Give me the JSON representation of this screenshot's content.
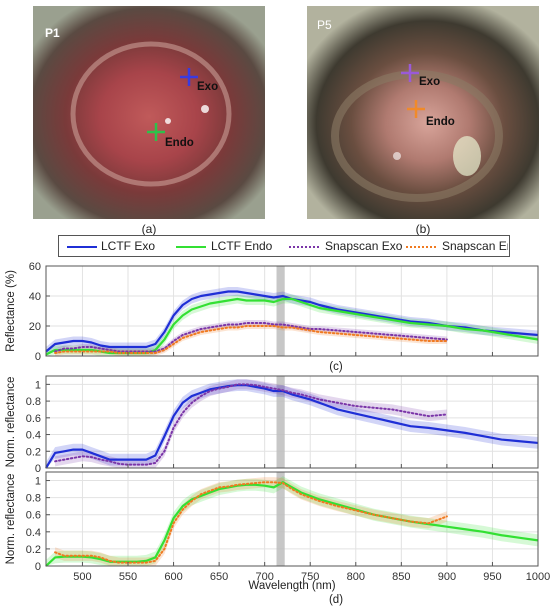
{
  "photos": [
    {
      "id": "P1",
      "panel": "(a)",
      "markers": [
        {
          "label": "Exo",
          "color": "#3a3adf"
        },
        {
          "label": "Endo",
          "color": "#2ec04a"
        }
      ]
    },
    {
      "id": "P5",
      "panel": "(b)",
      "markers": [
        {
          "label": "Exo",
          "color": "#9a5ad8"
        },
        {
          "label": "Endo",
          "color": "#f08a2a"
        }
      ]
    }
  ],
  "legend": [
    {
      "label": "LCTF Exo",
      "color": "#1f2fd6",
      "style": "solid"
    },
    {
      "label": "LCTF Endo",
      "color": "#33e033",
      "style": "solid"
    },
    {
      "label": "Snapscan Exo",
      "color": "#7a35a8",
      "style": "dotted"
    },
    {
      "label": "Snapscan Endo",
      "color": "#f07a20",
      "style": "dotted"
    }
  ],
  "chart_captions": {
    "c": "(c)",
    "d": "(d)"
  },
  "chart_data": [
    {
      "type": "line",
      "ylabel": "Reflectance (%)",
      "xlabel": "",
      "xlim": [
        460,
        1000
      ],
      "ylim": [
        0,
        60
      ],
      "yticks": [
        0,
        20,
        40,
        60
      ],
      "xticks": [
        500,
        550,
        600,
        650,
        700,
        750,
        800,
        850,
        900,
        950,
        1000
      ],
      "grid": true,
      "highlight_band": [
        713,
        722
      ],
      "series": [
        {
          "name": "LCTF Exo",
          "color": "#1f2fd6",
          "style": "solid",
          "band": 3,
          "x": [
            460,
            470,
            480,
            490,
            500,
            510,
            520,
            530,
            540,
            550,
            560,
            570,
            580,
            590,
            600,
            610,
            620,
            630,
            640,
            650,
            660,
            670,
            680,
            690,
            700,
            710,
            720,
            730,
            740,
            750,
            760,
            780,
            800,
            820,
            840,
            860,
            880,
            900,
            920,
            940,
            960,
            980,
            1000
          ],
          "y": [
            3,
            8,
            9,
            10,
            10,
            9,
            7,
            6,
            6,
            6,
            6,
            6,
            8,
            16,
            27,
            34,
            38,
            40,
            41,
            42,
            43,
            43,
            42,
            41,
            40,
            39,
            40,
            38,
            37,
            36,
            34,
            31,
            29,
            27,
            25,
            23,
            22,
            20,
            19,
            17,
            16,
            15,
            14
          ]
        },
        {
          "name": "LCTF Endo",
          "color": "#33e033",
          "style": "solid",
          "band": 3,
          "x": [
            460,
            470,
            480,
            490,
            500,
            510,
            520,
            530,
            540,
            550,
            560,
            570,
            580,
            590,
            600,
            610,
            620,
            630,
            640,
            650,
            660,
            670,
            680,
            690,
            700,
            710,
            720,
            730,
            740,
            750,
            760,
            780,
            800,
            820,
            840,
            860,
            880,
            900,
            920,
            940,
            960,
            980,
            1000
          ],
          "y": [
            1,
            4,
            4,
            4,
            4,
            4,
            3,
            2,
            2,
            2,
            2,
            2,
            4,
            11,
            21,
            27,
            31,
            33,
            35,
            36,
            37,
            38,
            37,
            37,
            37,
            36,
            38,
            38,
            36,
            34,
            32,
            30,
            28,
            26,
            24,
            22,
            21,
            20,
            18,
            17,
            15,
            13,
            11
          ]
        },
        {
          "name": "Snapscan Exo",
          "color": "#7a35a8",
          "style": "dotted",
          "band": 2,
          "x": [
            470,
            480,
            490,
            500,
            510,
            520,
            530,
            540,
            550,
            560,
            570,
            580,
            590,
            600,
            610,
            620,
            630,
            640,
            650,
            660,
            670,
            680,
            690,
            700,
            710,
            720,
            730,
            740,
            750,
            760,
            780,
            800,
            820,
            840,
            860,
            880,
            900
          ],
          "y": [
            3,
            5,
            5,
            6,
            6,
            5,
            4,
            3,
            3,
            3,
            3,
            3,
            5,
            10,
            14,
            16,
            18,
            19,
            20,
            21,
            21,
            22,
            22,
            22,
            21,
            21,
            20,
            19,
            18,
            18,
            17,
            16,
            15,
            14,
            13,
            12,
            11
          ]
        },
        {
          "name": "Snapscan Endo",
          "color": "#f07a20",
          "style": "dotted",
          "band": 2,
          "x": [
            470,
            480,
            490,
            500,
            510,
            520,
            530,
            540,
            550,
            560,
            570,
            580,
            590,
            600,
            610,
            620,
            630,
            640,
            650,
            660,
            670,
            680,
            690,
            700,
            710,
            720,
            730,
            740,
            750,
            760,
            780,
            800,
            820,
            840,
            860,
            880,
            900
          ],
          "y": [
            2,
            3,
            3,
            3,
            3,
            3,
            3,
            2,
            2,
            2,
            2,
            2,
            4,
            8,
            12,
            14,
            16,
            17,
            18,
            19,
            19,
            20,
            20,
            20,
            20,
            19,
            19,
            18,
            17,
            16,
            15,
            14,
            13,
            12,
            11,
            10,
            10
          ]
        }
      ]
    },
    {
      "type": "line",
      "ylabel": "Norm. reflectance",
      "xlabel": "",
      "xlim": [
        460,
        1000
      ],
      "ylim": [
        0,
        1.1
      ],
      "yticks": [
        0,
        0.2,
        0.4,
        0.6,
        0.8,
        1
      ],
      "ytick_labels": [
        "0",
        "0.2",
        "0.4",
        "0.6",
        "0.8",
        "1"
      ],
      "xticks": [
        500,
        550,
        600,
        650,
        700,
        750,
        800,
        850,
        900,
        950,
        1000
      ],
      "grid": true,
      "highlight_band": [
        713,
        722
      ],
      "series": [
        {
          "name": "LCTF Exo",
          "color": "#1f2fd6",
          "style": "solid",
          "band": 0.07,
          "x": [
            460,
            470,
            480,
            490,
            500,
            510,
            520,
            530,
            540,
            550,
            560,
            570,
            580,
            590,
            600,
            610,
            620,
            630,
            640,
            650,
            660,
            670,
            680,
            690,
            700,
            710,
            720,
            730,
            740,
            750,
            760,
            780,
            800,
            820,
            840,
            860,
            880,
            900,
            920,
            940,
            960,
            980,
            1000
          ],
          "y": [
            0,
            0.18,
            0.2,
            0.22,
            0.22,
            0.18,
            0.14,
            0.1,
            0.1,
            0.1,
            0.1,
            0.1,
            0.15,
            0.38,
            0.62,
            0.78,
            0.86,
            0.9,
            0.94,
            0.96,
            0.98,
            0.99,
            0.99,
            0.97,
            0.95,
            0.92,
            0.92,
            0.88,
            0.85,
            0.82,
            0.78,
            0.7,
            0.65,
            0.6,
            0.55,
            0.5,
            0.48,
            0.45,
            0.42,
            0.38,
            0.34,
            0.32,
            0.3
          ]
        },
        {
          "name": "Snapscan Exo",
          "color": "#7a35a8",
          "style": "dotted",
          "band": 0.06,
          "x": [
            470,
            480,
            490,
            500,
            510,
            520,
            530,
            540,
            550,
            560,
            570,
            580,
            590,
            600,
            610,
            620,
            630,
            640,
            650,
            660,
            670,
            680,
            690,
            700,
            710,
            720,
            730,
            740,
            750,
            760,
            780,
            800,
            820,
            840,
            860,
            880,
            900
          ],
          "y": [
            0.08,
            0.1,
            0.12,
            0.14,
            0.13,
            0.1,
            0.08,
            0.05,
            0.04,
            0.04,
            0.04,
            0.06,
            0.2,
            0.48,
            0.66,
            0.78,
            0.86,
            0.92,
            0.95,
            0.97,
            1.0,
            1.0,
            0.99,
            0.97,
            0.95,
            0.93,
            0.9,
            0.88,
            0.85,
            0.82,
            0.78,
            0.74,
            0.72,
            0.7,
            0.66,
            0.62,
            0.64
          ]
        }
      ]
    },
    {
      "type": "line",
      "ylabel": "Norm. reflectance",
      "xlabel": "Wavelength (nm)",
      "xlim": [
        460,
        1000
      ],
      "ylim": [
        0,
        1.1
      ],
      "yticks": [
        0,
        0.2,
        0.4,
        0.6,
        0.8,
        1
      ],
      "ytick_labels": [
        "0",
        "0.2",
        "0.4",
        "0.6",
        "0.8",
        "1"
      ],
      "xticks": [
        500,
        550,
        600,
        650,
        700,
        750,
        800,
        850,
        900,
        950,
        1000
      ],
      "xtick_labels": [
        "500",
        "550",
        "600",
        "650",
        "700",
        "750",
        "800",
        "850",
        "900",
        "950",
        "1000"
      ],
      "grid": true,
      "highlight_band": [
        713,
        722
      ],
      "series": [
        {
          "name": "LCTF Endo",
          "color": "#33e033",
          "style": "solid",
          "band": 0.07,
          "x": [
            460,
            470,
            480,
            490,
            500,
            510,
            520,
            530,
            540,
            550,
            560,
            570,
            580,
            590,
            600,
            610,
            620,
            630,
            640,
            650,
            660,
            670,
            680,
            690,
            700,
            710,
            720,
            730,
            740,
            750,
            760,
            780,
            800,
            820,
            840,
            860,
            880,
            900,
            920,
            940,
            960,
            980,
            1000
          ],
          "y": [
            0,
            0.1,
            0.11,
            0.11,
            0.11,
            0.1,
            0.08,
            0.05,
            0.05,
            0.05,
            0.05,
            0.06,
            0.1,
            0.3,
            0.56,
            0.7,
            0.78,
            0.82,
            0.86,
            0.9,
            0.92,
            0.94,
            0.95,
            0.95,
            0.94,
            0.92,
            0.98,
            0.92,
            0.86,
            0.82,
            0.78,
            0.72,
            0.66,
            0.6,
            0.56,
            0.52,
            0.49,
            0.46,
            0.43,
            0.4,
            0.36,
            0.33,
            0.3
          ]
        },
        {
          "name": "Snapscan Endo",
          "color": "#f07a20",
          "style": "dotted",
          "band": 0.06,
          "x": [
            470,
            480,
            490,
            500,
            510,
            520,
            530,
            540,
            550,
            560,
            570,
            580,
            590,
            600,
            610,
            620,
            630,
            640,
            650,
            660,
            670,
            680,
            690,
            700,
            710,
            720,
            730,
            740,
            750,
            760,
            780,
            800,
            820,
            840,
            860,
            880,
            900
          ],
          "y": [
            0.16,
            0.12,
            0.12,
            0.12,
            0.12,
            0.1,
            0.06,
            0.04,
            0.04,
            0.04,
            0.04,
            0.06,
            0.2,
            0.5,
            0.66,
            0.76,
            0.84,
            0.88,
            0.92,
            0.93,
            0.95,
            0.96,
            0.97,
            0.98,
            0.98,
            0.97,
            0.9,
            0.84,
            0.8,
            0.76,
            0.7,
            0.65,
            0.6,
            0.56,
            0.52,
            0.5,
            0.58
          ]
        }
      ]
    }
  ]
}
